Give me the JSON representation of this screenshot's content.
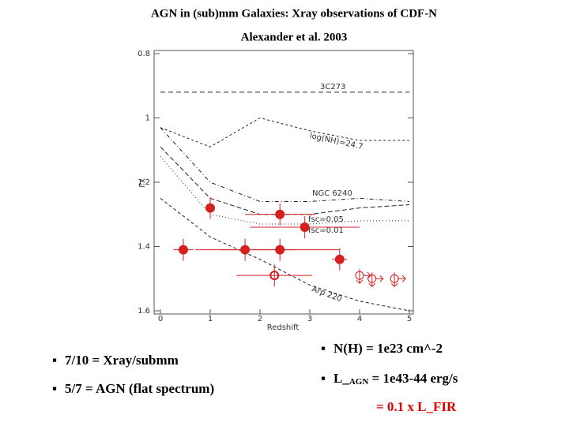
{
  "chart_data": {
    "type": "scatter",
    "title": "AGN in (sub)mm Galaxies: Xray observations of CDF-N",
    "subtitle": "Alexander et al. 2003",
    "xlabel": "Redshift",
    "ylabel": "Γx",
    "xlim": [
      0,
      5
    ],
    "xticks": [
      0,
      1,
      2,
      3,
      4,
      5
    ],
    "ylim": [
      0.8,
      1.6
    ],
    "yticks": [
      0.8,
      1,
      1.2,
      1.4,
      1.6
    ],
    "y_inverted": true,
    "series": [
      {
        "color": "#d42020",
        "marker": "filled",
        "x": [
          1.0,
          2.4,
          2.9,
          0.46,
          1.7,
          2.4,
          3.6
        ],
        "values": [
          1.28,
          1.3,
          1.34,
          1.41,
          1.41,
          1.41,
          1.44
        ],
        "xerr": [
          0,
          0.7,
          1.1,
          0.2,
          1.0,
          1.2,
          0.15
        ]
      },
      {
        "color": "#d42020",
        "marker": "open",
        "x": [
          2.29
        ],
        "values": [
          1.49
        ],
        "xerr": [
          0.76
        ]
      },
      {
        "color": "#d42020",
        "marker": "limit",
        "x": [
          4.0,
          4.25,
          4.7
        ],
        "values": [
          1.49,
          1.5,
          1.5
        ]
      }
    ],
    "curves": [
      {
        "label": "3C273",
        "x": [
          0,
          1,
          2,
          3,
          4,
          5
        ],
        "values": [
          0.92,
          0.92,
          0.92,
          0.92,
          0.92,
          0.92
        ]
      },
      {
        "label": "log(NH)=24.7",
        "x": [
          0,
          1,
          2,
          3,
          4,
          5
        ],
        "values": [
          1.03,
          1.09,
          1.0,
          1.04,
          1.07,
          1.07
        ]
      },
      {
        "label": "NGC 6240",
        "x": [
          0,
          1,
          2,
          3,
          4,
          5
        ],
        "values": [
          1.03,
          1.2,
          1.26,
          1.26,
          1.25,
          1.26
        ]
      },
      {
        "label": "fsc=0.05",
        "x": [
          0,
          1,
          2,
          3,
          4,
          5
        ],
        "values": [
          1.09,
          1.25,
          1.3,
          1.3,
          1.28,
          1.27
        ]
      },
      {
        "label": "fsc=0.01",
        "x": [
          0,
          1,
          2,
          3,
          4,
          5
        ],
        "values": [
          1.12,
          1.3,
          1.33,
          1.33,
          1.32,
          1.32
        ]
      },
      {
        "label": "Arp 220",
        "x": [
          0,
          1,
          2,
          3,
          4,
          5
        ],
        "values": [
          1.25,
          1.37,
          1.44,
          1.52,
          1.57,
          1.6
        ]
      }
    ]
  },
  "bullets": {
    "left": [
      "7/10 = Xray/submm",
      "5/7 = AGN (flat spectrum)"
    ],
    "right": [
      "N(H) = 1e23 cm^-2"
    ],
    "lagn": {
      "prefix": "L_",
      "sub": "AGN",
      "rest": " = 1e43-44 erg/s"
    },
    "ratio": "=  0.1 x L_FIR"
  }
}
